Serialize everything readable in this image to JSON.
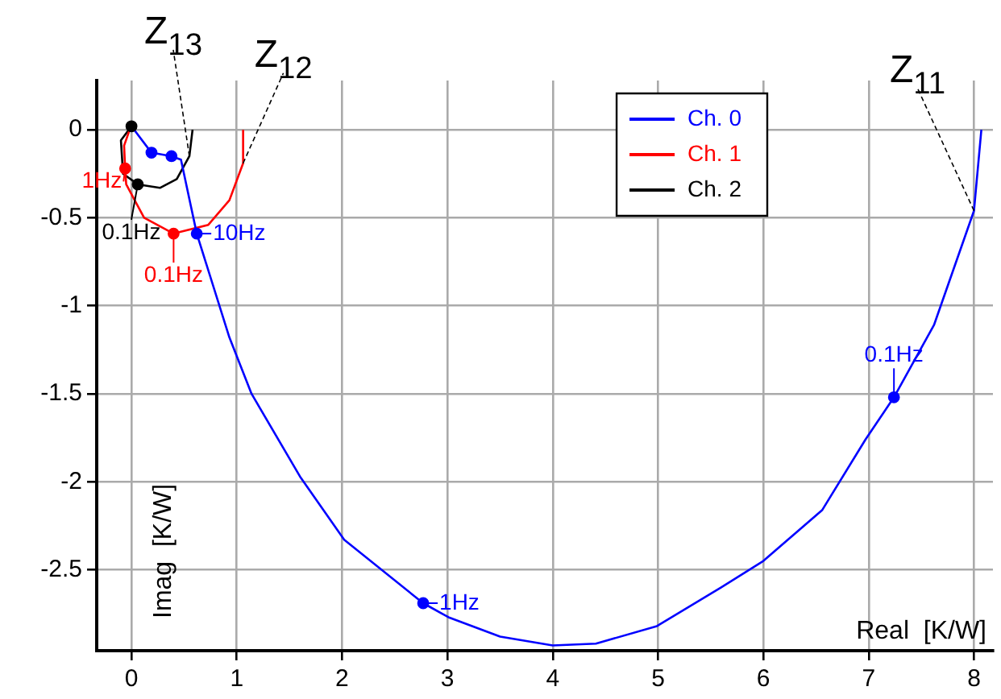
{
  "chart_data": {
    "type": "line",
    "xlabel": "Real  [K/W]",
    "ylabel": "Imag  [K/W]",
    "xlim": [
      -0.33,
      8.18
    ],
    "ylim": [
      -2.96,
      0.28
    ],
    "xticks": [
      0,
      1,
      2,
      3,
      4,
      5,
      6,
      7,
      8
    ],
    "yticks": [
      -2.5,
      -2,
      -1.5,
      -1,
      -0.5,
      0
    ],
    "grid": true,
    "legend": "top right",
    "marker": "none",
    "line_style": "solid",
    "series": [
      {
        "name": "Ch. 0",
        "color": "#0000ff",
        "x": [
          0,
          0.19,
          0.38,
          0.47,
          0.62,
          0.93,
          1.14,
          1.6,
          2.02,
          2.77,
          3.01,
          3.5,
          4.0,
          4.41,
          4.99,
          5.6,
          6.0,
          6.56,
          6.97,
          7.24,
          7.62,
          8.0,
          8.07
        ],
        "values": [
          0.02,
          -0.13,
          -0.15,
          -0.17,
          -0.59,
          -1.18,
          -1.5,
          -1.97,
          -2.33,
          -2.69,
          -2.77,
          -2.88,
          -2.93,
          -2.92,
          -2.82,
          -2.6,
          -2.45,
          -2.16,
          -1.76,
          -1.52,
          -1.11,
          -0.46,
          0
        ]
      },
      {
        "name": "Ch. 1",
        "color": "#ff0000",
        "x": [
          0,
          -0.07,
          -0.06,
          -0.05,
          0.12,
          0.4,
          0.73,
          0.93,
          1.06,
          1.06
        ],
        "values": [
          0.03,
          -0.09,
          -0.22,
          -0.31,
          -0.5,
          -0.59,
          -0.54,
          -0.4,
          -0.19,
          0
        ]
      },
      {
        "name": "Ch. 2",
        "color": "#000000",
        "x": [
          0,
          -0.1,
          -0.08,
          0.06,
          0.27,
          0.43,
          0.55,
          0.58
        ],
        "values": [
          0.02,
          -0.06,
          -0.25,
          -0.31,
          -0.33,
          -0.28,
          -0.15,
          0
        ]
      },
      {
        "type": "scatter",
        "marker": "circle",
        "color": "#0000ff",
        "x": [
          0.19,
          0.38,
          0.62,
          2.77,
          7.24
        ],
        "values": [
          -0.13,
          -0.15,
          -0.59,
          -2.69,
          -1.52
        ]
      },
      {
        "type": "scatter",
        "marker": "circle",
        "color": "#ff0000",
        "x": [
          -0.06,
          0.4
        ],
        "values": [
          -0.22,
          -0.59
        ]
      },
      {
        "type": "scatter",
        "marker": "circle",
        "color": "#000000",
        "x": [
          0,
          0.06
        ],
        "values": [
          0.02,
          -0.31
        ]
      }
    ],
    "annotations": [
      {
        "text": "Z$_{11}$",
        "x": 8.0,
        "y": -0.46
      },
      {
        "text": "Z$_{12}$",
        "x": 1.06,
        "y": -0.19
      },
      {
        "text": "Z$_{13}$",
        "x": 0.55,
        "y": -0.15
      },
      {
        "text": "10Hz",
        "x": 0.62,
        "y": -0.59
      },
      {
        "text": "1Hz",
        "x": 2.77,
        "y": -2.69
      },
      {
        "text": "0.1Hz",
        "x": 7.24,
        "y": -1.52
      },
      {
        "text": "1Hz",
        "x": -0.06,
        "y": -0.22
      },
      {
        "text": "0.1Hz",
        "x": 0.4,
        "y": -0.59
      },
      {
        "text": "0.1Hz",
        "x": 0.06,
        "y": -0.31
      }
    ]
  }
}
